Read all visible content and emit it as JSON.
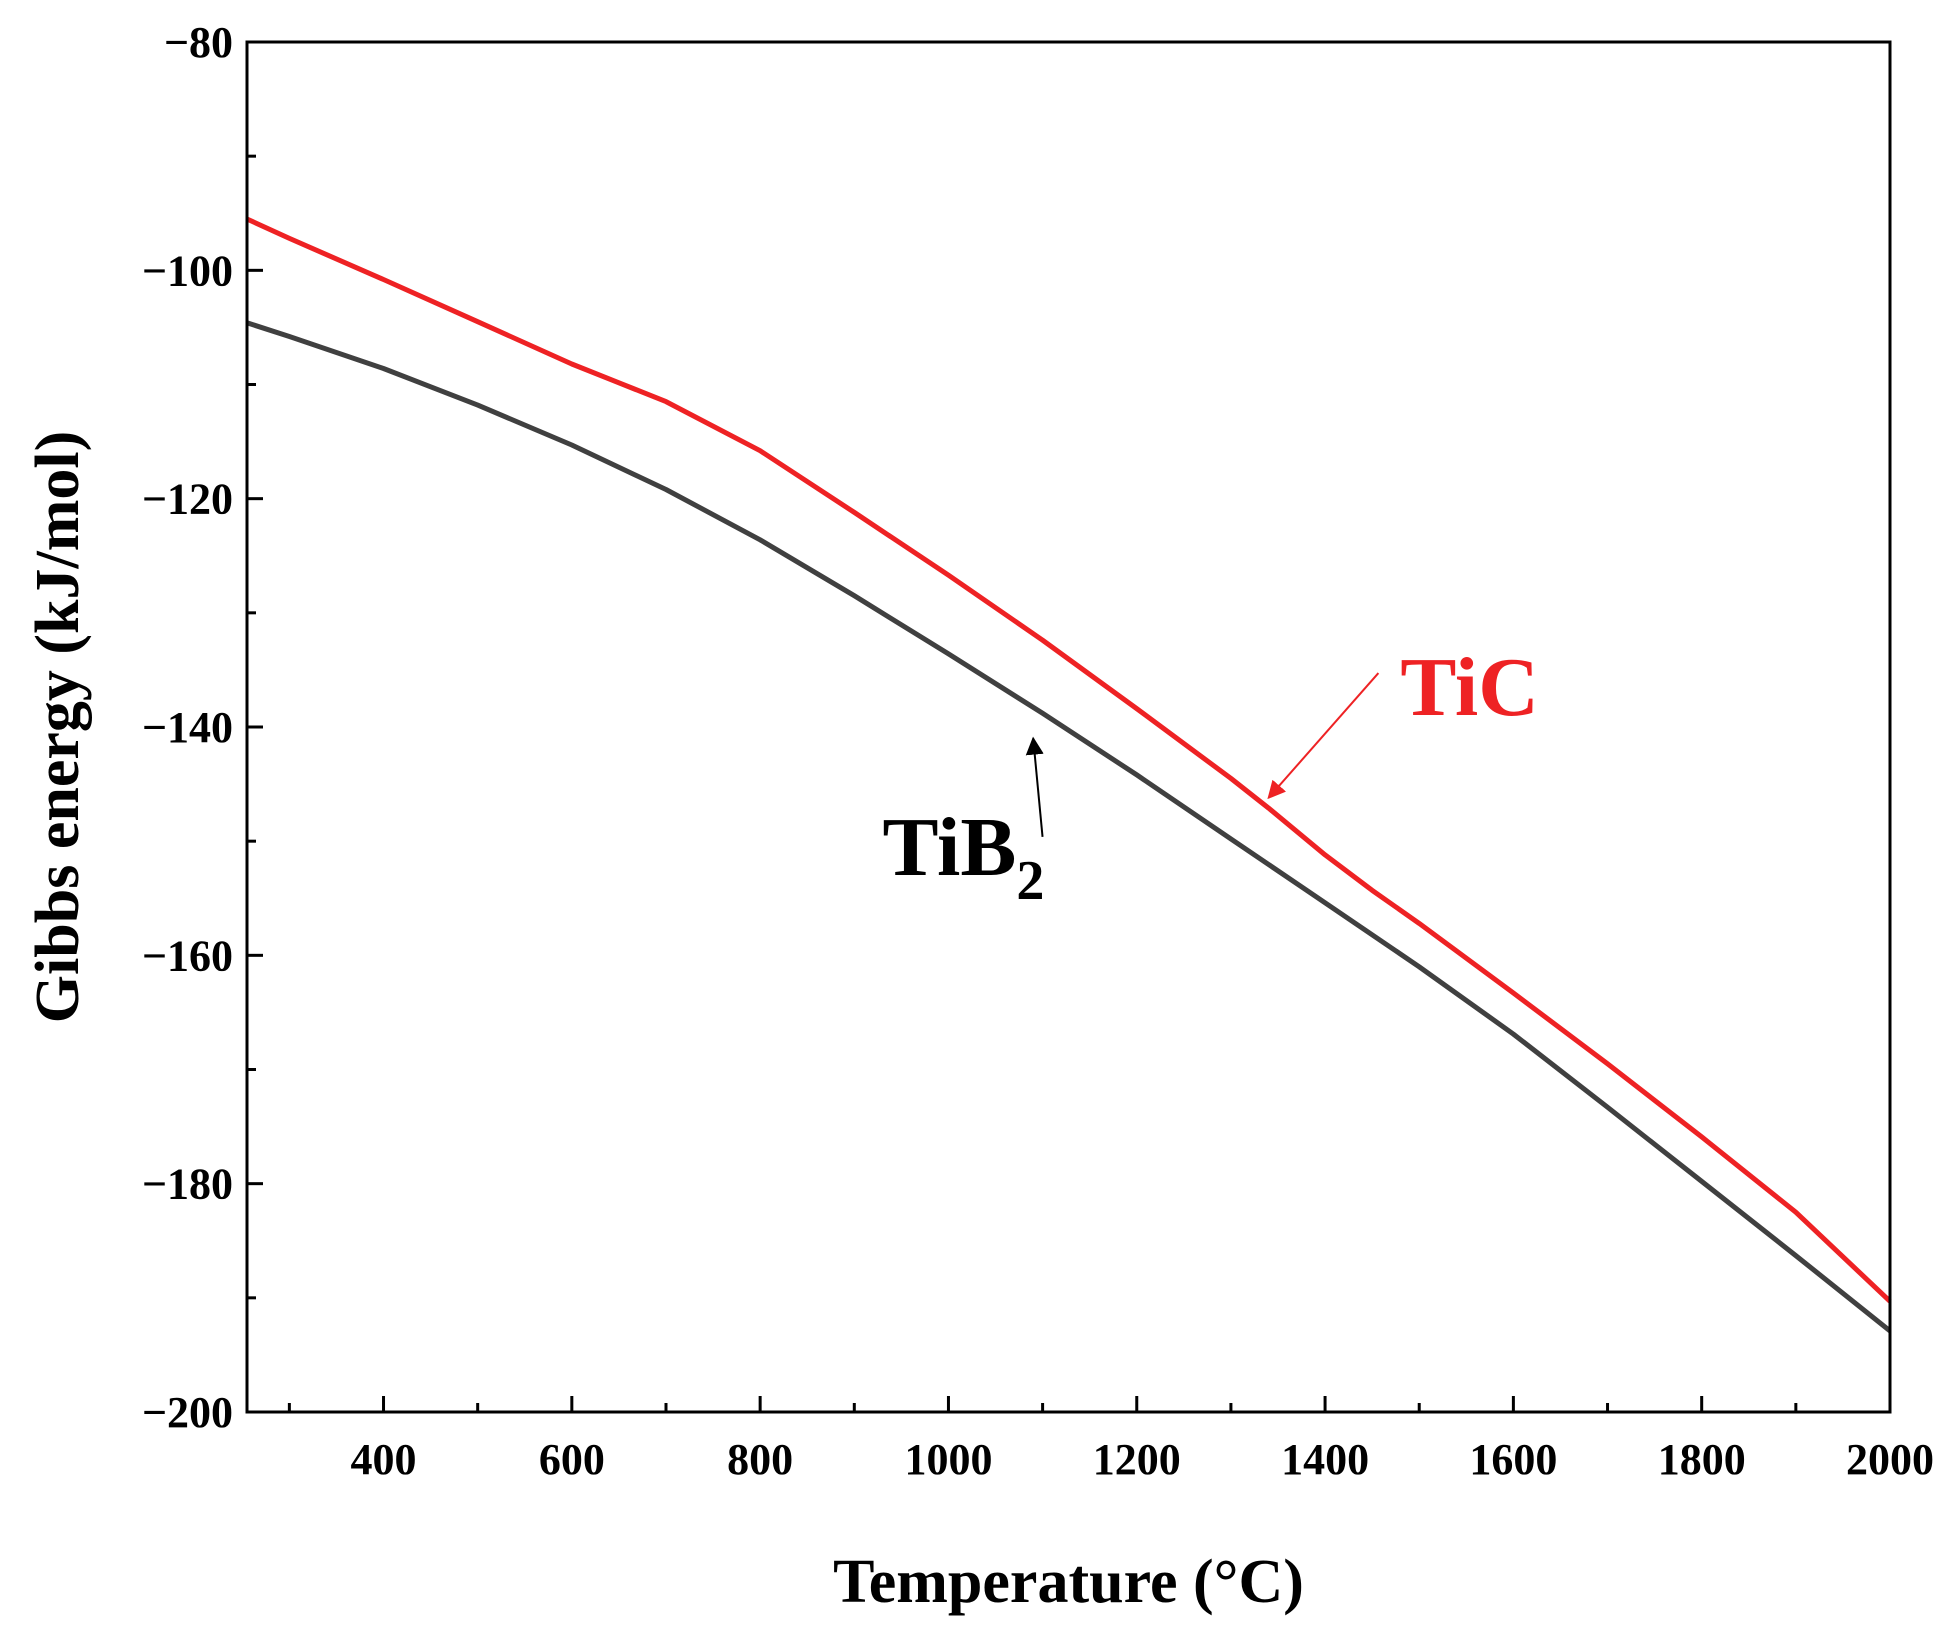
{
  "chart_data": {
    "type": "line",
    "title": "",
    "xlabel": "Temperature (°C)",
    "ylabel": "Gibbs energy (kJ/mol)",
    "xlim": [
      255,
      2000
    ],
    "ylim": [
      -200,
      -80
    ],
    "xticks": [
      400,
      600,
      800,
      1000,
      1200,
      1400,
      1600,
      1800,
      2000
    ],
    "xtick_labels": [
      "400",
      "600",
      "800",
      "1000",
      "1200",
      "1400",
      "1600",
      "1800",
      "2000"
    ],
    "yticks": [
      -80,
      -100,
      -120,
      -140,
      -160,
      -180,
      -200
    ],
    "ytick_labels": [
      "−80",
      "−100",
      "−120",
      "−140",
      "−160",
      "−180",
      "−200"
    ],
    "grid": false,
    "series": [
      {
        "name": "TiC",
        "color": "#ee2224",
        "x": [
          255,
          300,
          400,
          500,
          600,
          700,
          800,
          900,
          1000,
          1100,
          1200,
          1300,
          1340,
          1400,
          1450,
          1500,
          1600,
          1700,
          1800,
          1900,
          2000
        ],
        "y": [
          -95.5,
          -97.2,
          -100.8,
          -104.5,
          -108.2,
          -111.5,
          -115.8,
          -121.2,
          -126.7,
          -132.4,
          -138.4,
          -144.5,
          -147.1,
          -151.2,
          -154.3,
          -157.2,
          -163.3,
          -169.5,
          -175.9,
          -182.5,
          -190.3
        ]
      },
      {
        "name": "TiB₂",
        "color": "#404040",
        "x": [
          255,
          300,
          400,
          500,
          600,
          700,
          800,
          900,
          1000,
          1100,
          1200,
          1300,
          1400,
          1500,
          1600,
          1700,
          1800,
          1900,
          2000
        ],
        "y": [
          -104.6,
          -105.8,
          -108.6,
          -111.8,
          -115.3,
          -119.2,
          -123.6,
          -128.5,
          -133.6,
          -138.8,
          -144.2,
          -149.8,
          -155.4,
          -161.0,
          -166.9,
          -173.3,
          -179.8,
          -186.3,
          -192.9
        ]
      }
    ],
    "annotations": [
      {
        "text": "TiC",
        "color": "#ee2224",
        "arrow_to": [
          1340,
          -146.2
        ],
        "text_at": [
          1480,
          -136.5
        ]
      },
      {
        "text": "TiB",
        "subscript": "2",
        "color": "#000000",
        "arrow_to": [
          1090,
          -141
        ],
        "text_at": [
          930,
          -150.5
        ]
      }
    ]
  }
}
